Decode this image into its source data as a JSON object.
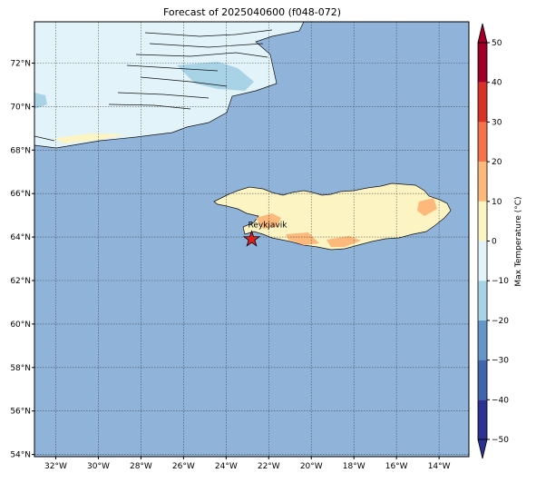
{
  "title": "Forecast of 2025040600 (f048-072)",
  "map": {
    "lonlim": [
      -33,
      -12.6
    ],
    "latlim": [
      53.9,
      73.9
    ],
    "ocean_color": "#90b4d9",
    "lon_ticks": [
      {
        "value": -32,
        "label": "32°W"
      },
      {
        "value": -30,
        "label": "30°W"
      },
      {
        "value": -28,
        "label": "28°W"
      },
      {
        "value": -26,
        "label": "26°W"
      },
      {
        "value": -24,
        "label": "24°W"
      },
      {
        "value": -22,
        "label": "22°W"
      },
      {
        "value": -20,
        "label": "20°W"
      },
      {
        "value": -18,
        "label": "18°W"
      },
      {
        "value": -16,
        "label": "16°W"
      },
      {
        "value": -14,
        "label": "14°W"
      }
    ],
    "lat_ticks": [
      {
        "value": 54,
        "label": "54°N"
      },
      {
        "value": 56,
        "label": "56°N"
      },
      {
        "value": 58,
        "label": "58°N"
      },
      {
        "value": 60,
        "label": "60°N"
      },
      {
        "value": 62,
        "label": "62°N"
      },
      {
        "value": 64,
        "label": "64°N"
      },
      {
        "value": 66,
        "label": "66°N"
      },
      {
        "value": 68,
        "label": "68°N"
      },
      {
        "value": 70,
        "label": "70°N"
      },
      {
        "value": 72,
        "label": "72°N"
      }
    ],
    "marker": {
      "label": "Reykjavik",
      "lon": -22.8,
      "lat": 63.9,
      "color": "#e0201c"
    }
  },
  "colorbar": {
    "label": "Max Temperature (°C)",
    "ticks": [
      {
        "value": -50,
        "label": "−50"
      },
      {
        "value": -40,
        "label": "−40"
      },
      {
        "value": -30,
        "label": "−30"
      },
      {
        "value": -20,
        "label": "−20"
      },
      {
        "value": -10,
        "label": "−10"
      },
      0,
      10,
      20,
      30,
      40,
      50
    ],
    "colors": [
      "#2c3292",
      "#3f66aa",
      "#6496c8",
      "#a8d3e6",
      "#e2f4f9",
      "#fdf4c4",
      "#fdb97c",
      "#f4734a",
      "#d63228",
      "#a00026"
    ]
  }
}
